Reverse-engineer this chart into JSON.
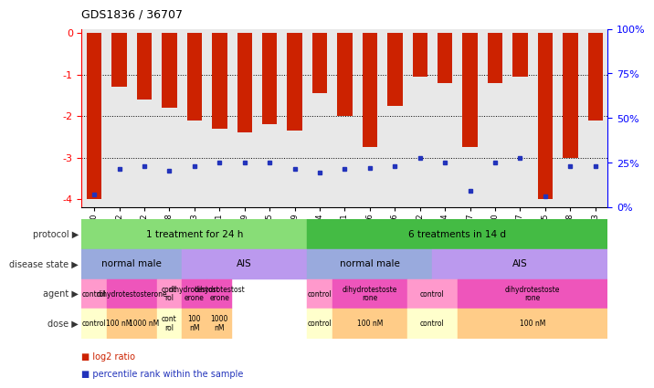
{
  "title": "GDS1836 / 36707",
  "samples": [
    "GSM88440",
    "GSM88442",
    "GSM88422",
    "GSM88438",
    "GSM88423",
    "GSM88441",
    "GSM88429",
    "GSM88435",
    "GSM88439",
    "GSM88424",
    "GSM88431",
    "GSM88436",
    "GSM88426",
    "GSM88432",
    "GSM88434",
    "GSM88427",
    "GSM88430",
    "GSM88437",
    "GSM88425",
    "GSM88428",
    "GSM88433"
  ],
  "log2_ratio": [
    -4.0,
    -1.3,
    -1.6,
    -1.8,
    -2.1,
    -2.3,
    -2.4,
    -2.2,
    -2.35,
    -1.45,
    -2.0,
    -2.75,
    -1.75,
    -1.05,
    -1.2,
    -2.75,
    -1.2,
    -1.05,
    -4.0,
    -3.0,
    -2.1
  ],
  "percentile": [
    3,
    18,
    20,
    17,
    20,
    22,
    22,
    22,
    18,
    16,
    18,
    19,
    20,
    25,
    22,
    5,
    22,
    25,
    2,
    20,
    20
  ],
  "bar_color": "#cc2200",
  "blue_color": "#2233bb",
  "chart_bg": "#e8e8e8",
  "yticks_left": [
    0,
    -1,
    -2,
    -3,
    -4
  ],
  "yticks_right": [
    0,
    25,
    50,
    75,
    100
  ],
  "protocol_groups": [
    {
      "label": "1 treatment for 24 h",
      "start": 0,
      "end": 9,
      "color": "#88dd77"
    },
    {
      "label": "6 treatments in 14 d",
      "start": 9,
      "end": 21,
      "color": "#44bb44"
    }
  ],
  "disease_groups": [
    {
      "label": "normal male",
      "start": 0,
      "end": 4,
      "color": "#99aadd"
    },
    {
      "label": "AIS",
      "start": 4,
      "end": 9,
      "color": "#bb99ee"
    },
    {
      "label": "normal male",
      "start": 9,
      "end": 14,
      "color": "#99aadd"
    },
    {
      "label": "AIS",
      "start": 14,
      "end": 21,
      "color": "#bb99ee"
    }
  ],
  "agent_groups": [
    {
      "label": "control",
      "start": 0,
      "end": 1,
      "color": "#ff99cc"
    },
    {
      "label": "dihydrotestosterone",
      "start": 1,
      "end": 3,
      "color": "#ee55bb"
    },
    {
      "label": "cont\nrol",
      "start": 3,
      "end": 4,
      "color": "#ff99cc"
    },
    {
      "label": "dihydrotestost\nerone",
      "start": 4,
      "end": 5,
      "color": "#ee55bb"
    },
    {
      "label": "dihydrotestost\nerone",
      "start": 5,
      "end": 6,
      "color": "#ee55bb"
    },
    {
      "label": "control",
      "start": 9,
      "end": 10,
      "color": "#ff99cc"
    },
    {
      "label": "dihydrotestoste\nrone",
      "start": 10,
      "end": 13,
      "color": "#ee55bb"
    },
    {
      "label": "control",
      "start": 13,
      "end": 15,
      "color": "#ff99cc"
    },
    {
      "label": "dihydrotestoste\nrone",
      "start": 15,
      "end": 21,
      "color": "#ee55bb"
    }
  ],
  "dose_groups": [
    {
      "label": "control",
      "start": 0,
      "end": 1,
      "color": "#ffffcc"
    },
    {
      "label": "100 nM",
      "start": 1,
      "end": 2,
      "color": "#ffcc88"
    },
    {
      "label": "1000 nM",
      "start": 2,
      "end": 3,
      "color": "#ffcc88"
    },
    {
      "label": "cont\nrol",
      "start": 3,
      "end": 4,
      "color": "#ffffcc"
    },
    {
      "label": "100\nnM",
      "start": 4,
      "end": 5,
      "color": "#ffcc88"
    },
    {
      "label": "1000\nnM",
      "start": 5,
      "end": 6,
      "color": "#ffcc88"
    },
    {
      "label": "control",
      "start": 9,
      "end": 10,
      "color": "#ffffcc"
    },
    {
      "label": "100 nM",
      "start": 10,
      "end": 13,
      "color": "#ffcc88"
    },
    {
      "label": "control",
      "start": 13,
      "end": 15,
      "color": "#ffffcc"
    },
    {
      "label": "100 nM",
      "start": 15,
      "end": 21,
      "color": "#ffcc88"
    }
  ],
  "row_labels": [
    "protocol",
    "disease state",
    "agent",
    "dose"
  ],
  "legend_items": [
    {
      "label": "log2 ratio",
      "color": "#cc2200"
    },
    {
      "label": "percentile rank within the sample",
      "color": "#2233bb"
    }
  ]
}
